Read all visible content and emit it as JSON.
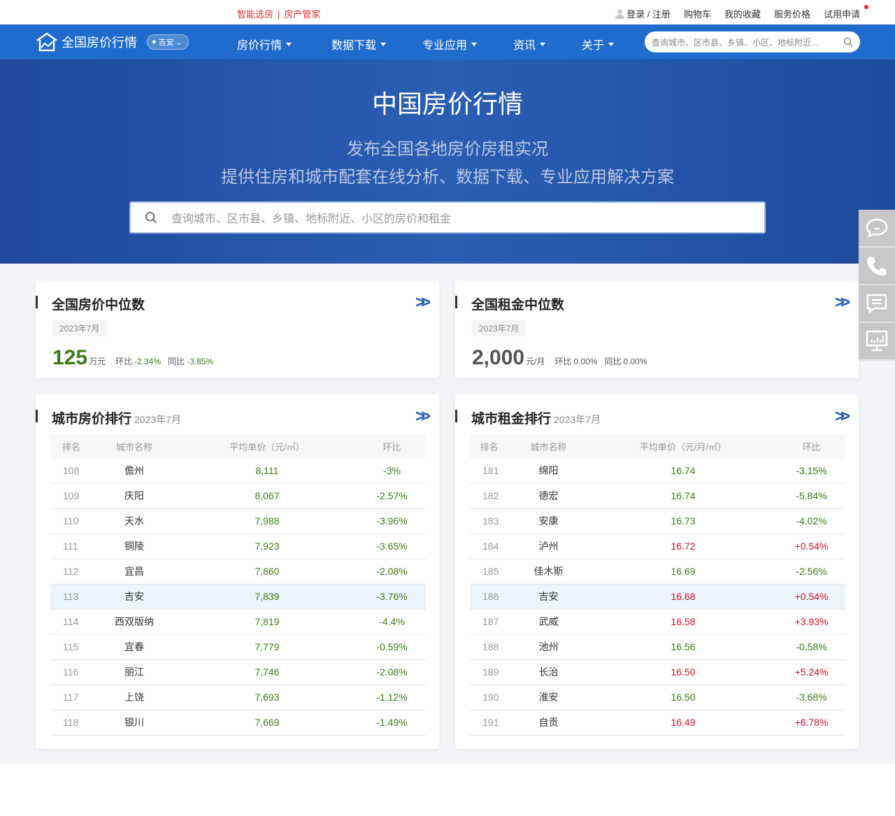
{
  "topbar": {
    "promo1": "智能选房",
    "promo_sep": "|",
    "promo2": "房产管家",
    "login": "登录 / 注册",
    "cart": "购物车",
    "favorites": "我的收藏",
    "pricing": "服务价格",
    "trial": "试用申请"
  },
  "nav": {
    "logo": "全国房价行情",
    "city": "吉安",
    "menus": [
      "房价行情",
      "数据下载",
      "专业应用",
      "资讯",
      "关于"
    ],
    "search_placeholder": "查询城市、区市县、乡镇、小区、地标附近..."
  },
  "hero": {
    "title": "中国房价行情",
    "subtitle1": "发布全国各地房价房租实况",
    "subtitle2": "提供住房和城市配套在线分析、数据下载、专业应用解决方案",
    "search_placeholder": "查询城市、区市县、乡镇、地标附近、小区的房价和租金"
  },
  "house_median": {
    "title": "全国房价中位数",
    "date": "2023年7月",
    "value": "125",
    "unit": "万元",
    "mom_label": "环比",
    "mom": "-2.34%",
    "yoy_label": "同比",
    "yoy": "-3.85%"
  },
  "rent_median": {
    "title": "全国租金中位数",
    "date": "2023年7月",
    "value": "2,000",
    "unit": "元/月",
    "mom_label": "环比",
    "mom": "0.00%",
    "yoy_label": "同比",
    "yoy": "0.00%"
  },
  "house_rank": {
    "title": "城市房价排行",
    "date": "2023年7月",
    "headers": [
      "排名",
      "城市名称",
      "平均单价（元/㎡）",
      "环比"
    ],
    "highlight": "113",
    "rows": [
      [
        "108",
        "儋州",
        "8,111",
        "-3%"
      ],
      [
        "109",
        "庆阳",
        "8,067",
        "-2.57%"
      ],
      [
        "110",
        "天水",
        "7,988",
        "-3.96%"
      ],
      [
        "111",
        "铜陵",
        "7,923",
        "-3.65%"
      ],
      [
        "112",
        "宜昌",
        "7,860",
        "-2.08%"
      ],
      [
        "113",
        "吉安",
        "7,839",
        "-3.76%"
      ],
      [
        "114",
        "西双版纳",
        "7,819",
        "-4.4%"
      ],
      [
        "115",
        "宜春",
        "7,779",
        "-0.59%"
      ],
      [
        "116",
        "丽江",
        "7,746",
        "-2.08%"
      ],
      [
        "117",
        "上饶",
        "7,693",
        "-1.12%"
      ],
      [
        "118",
        "银川",
        "7,669",
        "-1.49%"
      ]
    ]
  },
  "rent_rank": {
    "title": "城市租金排行",
    "date": "2023年7月",
    "headers": [
      "排名",
      "城市名称",
      "平均单价（元/月/㎡）",
      "环比"
    ],
    "highlight": "186",
    "rows": [
      [
        "181",
        "绵阳",
        "16.74",
        "-3.15%"
      ],
      [
        "182",
        "德宏",
        "16.74",
        "-5.84%"
      ],
      [
        "183",
        "安康",
        "16.73",
        "-4.02%"
      ],
      [
        "184",
        "泸州",
        "16.72",
        "+0.54%"
      ],
      [
        "185",
        "佳木斯",
        "16.69",
        "-2.56%"
      ],
      [
        "186",
        "吉安",
        "16.68",
        "+0.54%"
      ],
      [
        "187",
        "武威",
        "16.58",
        "+3.93%"
      ],
      [
        "188",
        "池州",
        "16.56",
        "-0.58%"
      ],
      [
        "189",
        "长治",
        "16.50",
        "+5.24%"
      ],
      [
        "190",
        "淮安",
        "16.50",
        "-3.68%"
      ],
      [
        "191",
        "自贡",
        "16.49",
        "+6.78%"
      ]
    ]
  },
  "colors": {
    "brand": "#1f6ccc",
    "up": "#d0102a",
    "down": "#3f7a16"
  },
  "side_icons": [
    "chat-bubble-icon",
    "phone-icon",
    "message-icon",
    "monitor-chart-icon"
  ]
}
